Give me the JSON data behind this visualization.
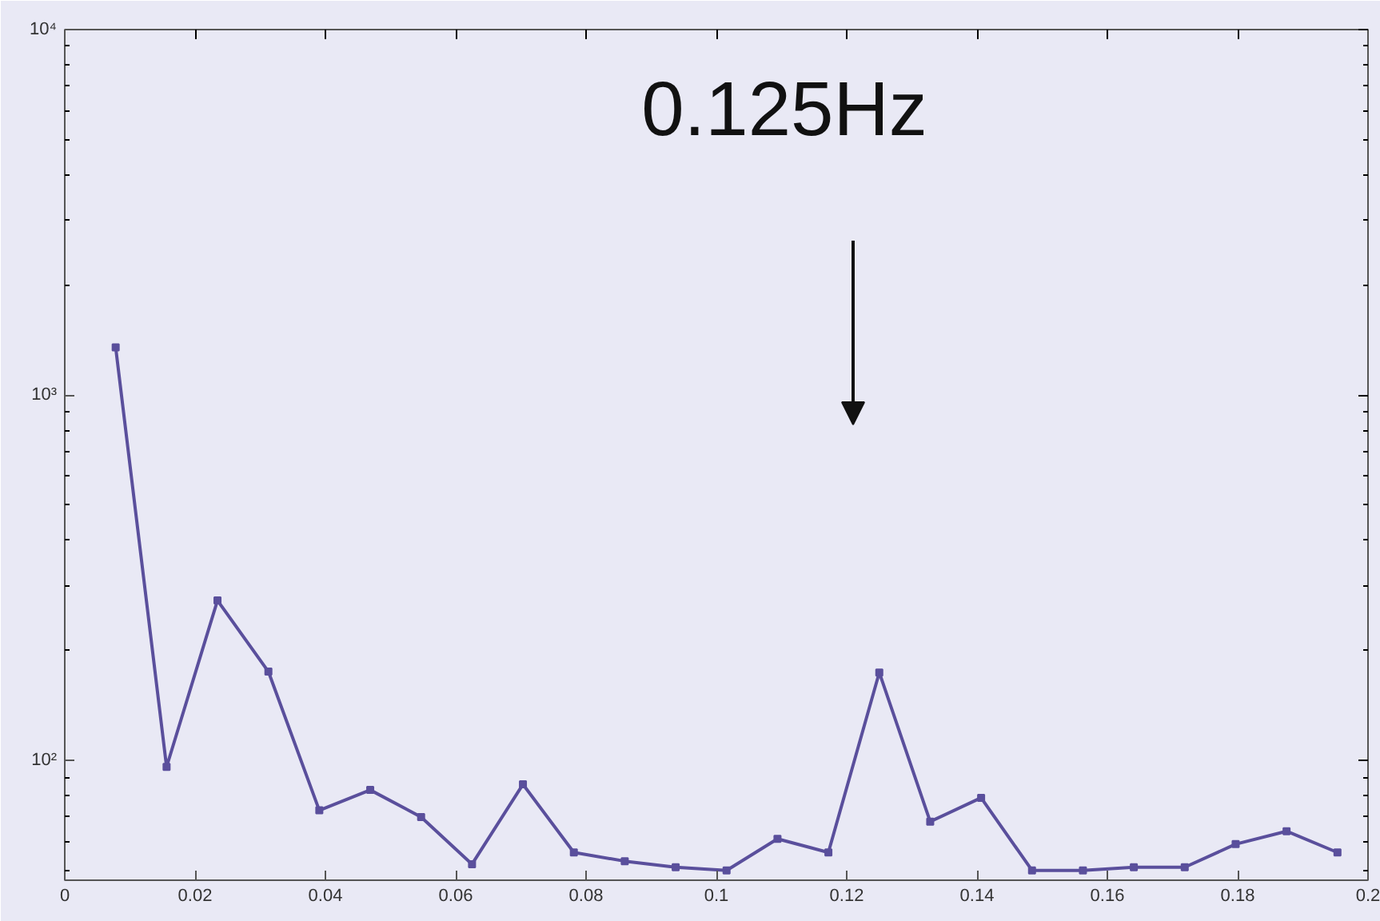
{
  "chart_data": {
    "type": "line",
    "log": "y",
    "x": [
      0.0078125,
      0.015625,
      0.0234375,
      0.03125,
      0.0390625,
      0.046875,
      0.0546875,
      0.0625,
      0.0703125,
      0.078125,
      0.0859375,
      0.09375,
      0.1015625,
      0.109375,
      0.1171875,
      0.125,
      0.1328125,
      0.140625,
      0.1484375,
      0.15625,
      0.1640625,
      0.171875,
      0.1796875,
      0.1875,
      0.1953125
    ],
    "series": [
      {
        "color": "#5a4f9c",
        "values": [
          1350,
          96,
          274,
          175,
          73,
          83,
          70,
          52,
          86,
          56,
          53,
          51,
          50,
          61,
          56,
          174,
          68,
          79,
          50,
          50,
          51,
          51,
          59,
          64,
          56
        ]
      }
    ],
    "marker": "square",
    "line_style": "solid",
    "grid": false,
    "xlim": [
      0,
      0.2
    ],
    "xticks": [
      0,
      0.02,
      0.04,
      0.06,
      0.08,
      0.1,
      0.12,
      0.14,
      0.16,
      0.18,
      0.2
    ],
    "ylim": [
      47,
      10000
    ],
    "yticks": [
      {
        "value": 100,
        "label": "10²"
      },
      {
        "value": 1000,
        "label": "10³"
      },
      {
        "value": 10000,
        "label": "10⁴"
      }
    ],
    "annotations": [
      "0.125Hz"
    ]
  }
}
